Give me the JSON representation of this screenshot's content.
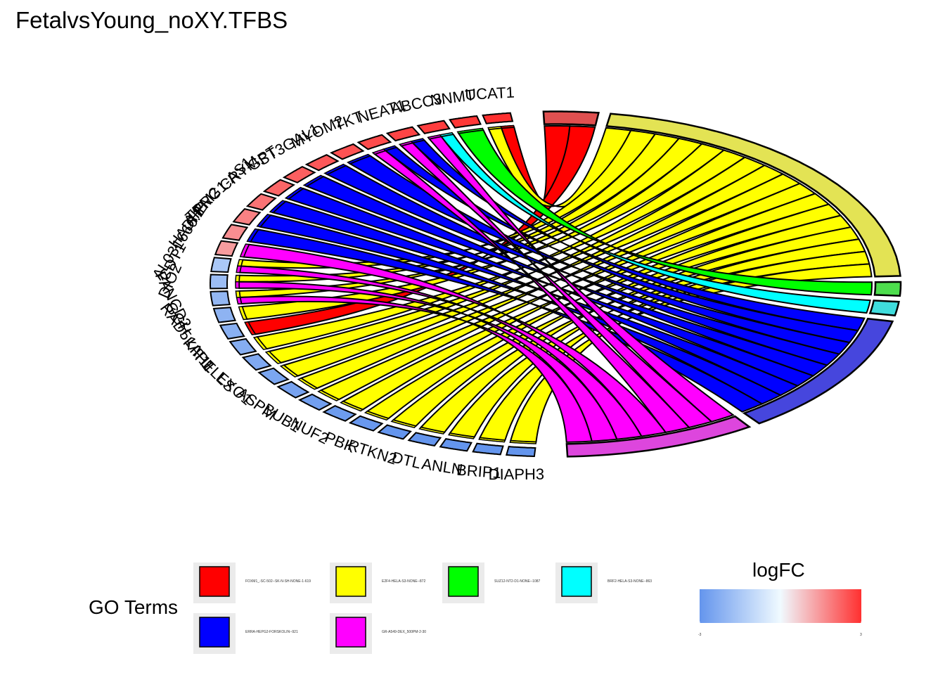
{
  "chart_data": {
    "type": "chord",
    "title": "FetalvsYoung_noXY.TFBS",
    "genes": [
      "UCAT1",
      "NNMT",
      "ABCC3",
      "NEAT1",
      "TKT",
      "MYOM2",
      "ST3GAL1",
      "GPT",
      "CRYM",
      "TPRG1-AS1",
      "AIFM2",
      "HADHB",
      "AL031666.2",
      "CDT1",
      "DIO2",
      "FANCD2",
      "GGH",
      "RAD51AP1",
      "KIF11",
      "HELLS",
      "EXO1",
      "ASPM",
      "BUB1",
      "NUF2",
      "PBK",
      "RTKN2",
      "DTL",
      "ANLN",
      "BRIP1",
      "DIAPH3"
    ],
    "gene_labels_shown": [
      "UCAT1",
      "NNMT",
      "ABCC3",
      "NEAT1",
      "TKT",
      "MYOM2",
      "ST3GAL1",
      "GPT",
      "CRYM",
      "TPRG1-AS1",
      "AIFM2",
      "HADHB",
      "AL031666.2",
      "CDT1",
      "DIO2",
      "FANCD2",
      "GGH",
      "RAD51AP1",
      "KIF11",
      "HELLS",
      "EXO1",
      "ASPM",
      "BUB1",
      "NUF2",
      "PBK",
      "RTKN2",
      "DTL",
      "ANLN",
      "BRIP1",
      "DIAPH3"
    ],
    "logFC": [
      3,
      2.9,
      2.8,
      2.7,
      2.6,
      2.5,
      2.4,
      2.3,
      2.2,
      2.0,
      1.8,
      1.6,
      1.4,
      -1.5,
      -1.8,
      -2.0,
      -2.1,
      -2.2,
      -2.3,
      -2.4,
      -2.5,
      -2.6,
      -2.7,
      -2.8,
      -2.9,
      -3,
      -3,
      -3,
      -3,
      -3
    ],
    "terms": [
      {
        "name": "FOXM1_-SC-502--SK-N-SH-NONE-1-619",
        "color": "#FF0000",
        "genes": [
          "UCAT1",
          "RAD51AP1"
        ]
      },
      {
        "name": "E2F4-HELA-S3-NONE--872",
        "color": "#FFFF00",
        "genes": [
          "UCAT1",
          "CDT1",
          "DIO2",
          "FANCD2",
          "GGH",
          "KIF11",
          "HELLS",
          "EXO1",
          "ASPM",
          "BUB1",
          "NUF2",
          "PBK",
          "RTKN2",
          "DTL",
          "ANLN",
          "BRIP1",
          "DIAPH3"
        ]
      },
      {
        "name": "SUZ12-NT2-D1-NONE--1087",
        "color": "#00FF00",
        "genes": [
          "NNMT"
        ]
      },
      {
        "name": "BRF2-HELA-S3-NONE--863",
        "color": "#00FFFF",
        "genes": [
          "ABCC3"
        ]
      },
      {
        "name": "ERRA-HEPG2-FORSKOLIN--921",
        "color": "#0000FF",
        "genes": [
          "NEAT1",
          "TKT",
          "MYOM2",
          "ST3GAL1",
          "GPT",
          "CRYM",
          "TPRG1-AS1",
          "AIFM2",
          "HADHB"
        ]
      },
      {
        "name": "GR-A549-DEX_500PM-2-30",
        "color": "#FF00FF",
        "genes": [
          "ABCC3",
          "NEAT1",
          "TKT",
          "AL031666.2",
          "CDT1",
          "DIO2",
          "FANCD2"
        ]
      }
    ],
    "term_arc_colors": [
      "#E05050",
      "#E3E354",
      "#4DDD4D",
      "#3FDCDC",
      "#4646DD",
      "#DD46DD"
    ]
  },
  "legend": {
    "go_title": "GO Terms",
    "logfc_title": "logFC",
    "logfc_min_label": "-3",
    "logfc_max_label": "3",
    "scale_low_color": "#6495ED",
    "scale_mid_color": "#F0FAFF",
    "scale_high_color": "#FF3030"
  }
}
